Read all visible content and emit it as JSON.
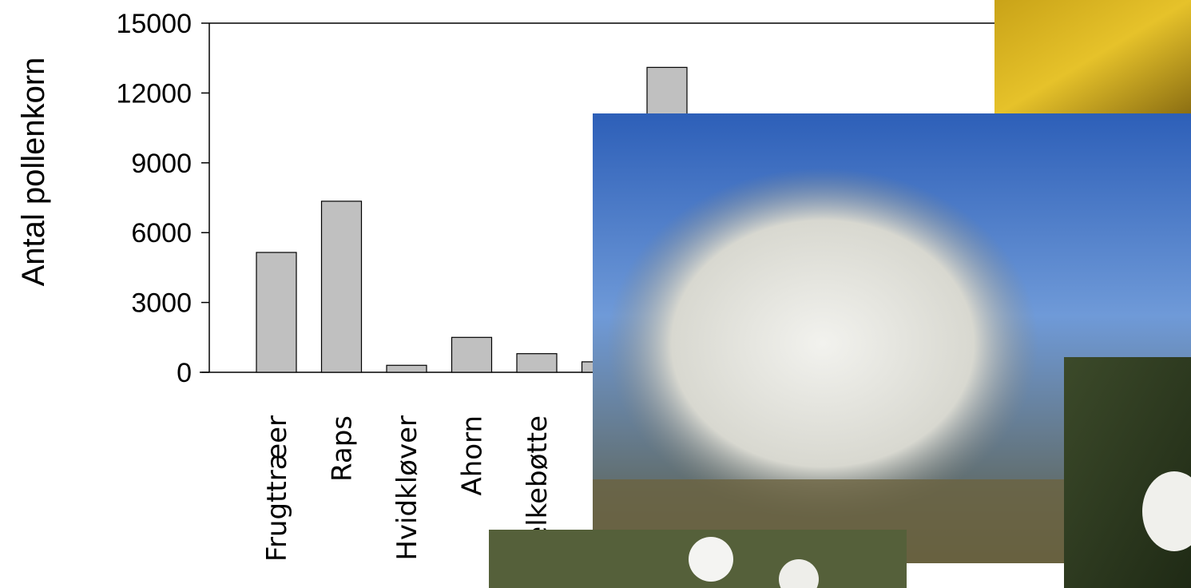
{
  "chart_data": {
    "type": "bar",
    "y_label": "Antal pollenkorn",
    "categories": [
      "Frugttræer",
      "Raps",
      "Hvidkløver",
      "Ahorn",
      "Mælkebøtte",
      null,
      null
    ],
    "values": [
      5150,
      7350,
      300,
      1500,
      800,
      450,
      13100
    ],
    "color": "#c0c0c0",
    "ylim": [
      0,
      15000
    ],
    "yticks": [
      0,
      3000,
      6000,
      9000,
      12000,
      15000
    ]
  }
}
